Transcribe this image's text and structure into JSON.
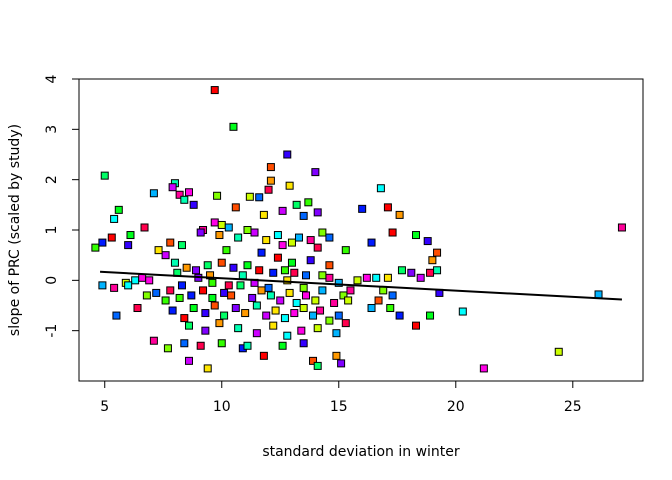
{
  "chart_data": {
    "type": "scatter",
    "title": "",
    "xlabel": "standard deviation in winter",
    "ylabel": "slope of PRC (scaled by study)",
    "xlim": [
      3.9,
      28.0
    ],
    "ylim": [
      -2.0,
      4.0
    ],
    "x_ticks": [
      5,
      10,
      15,
      20,
      25
    ],
    "y_ticks": [
      -1,
      0,
      1,
      2,
      3,
      4
    ],
    "grid": false,
    "legend": "none",
    "marker": "filled-square",
    "palette": [
      "#ff0000",
      "#ff4d00",
      "#ff9900",
      "#ffe600",
      "#ccff00",
      "#80ff00",
      "#33ff00",
      "#00ff1a",
      "#00ff66",
      "#00ffb3",
      "#00ffff",
      "#00b3ff",
      "#0066ff",
      "#001aff",
      "#3300ff",
      "#8000ff",
      "#cc00ff",
      "#ff00e6",
      "#ff0099",
      "#ff004d"
    ],
    "trend_line": {
      "x": [
        4.8,
        27.1
      ],
      "y": [
        0.17,
        -0.38
      ]
    },
    "points": [
      [
        9.7,
        3.78
      ],
      [
        10.5,
        3.05
      ],
      [
        12.8,
        2.5
      ],
      [
        12.1,
        2.25
      ],
      [
        5.0,
        2.08
      ],
      [
        14.0,
        2.15
      ],
      [
        12.1,
        1.98
      ],
      [
        8.0,
        1.93
      ],
      [
        7.9,
        1.85
      ],
      [
        12.9,
        1.88
      ],
      [
        16.8,
        1.83
      ],
      [
        8.6,
        1.75
      ],
      [
        11.2,
        1.66
      ],
      [
        7.1,
        1.73
      ],
      [
        8.2,
        1.7
      ],
      [
        9.8,
        1.68
      ],
      [
        11.6,
        1.65
      ],
      [
        12.0,
        1.8
      ],
      [
        13.7,
        1.55
      ],
      [
        16.0,
        1.42
      ],
      [
        17.1,
        1.45
      ],
      [
        5.6,
        1.4
      ],
      [
        8.8,
        1.5
      ],
      [
        10.6,
        1.45
      ],
      [
        13.2,
        1.5
      ],
      [
        14.1,
        1.35
      ],
      [
        17.6,
        1.3
      ],
      [
        8.4,
        1.6
      ],
      [
        12.6,
        1.38
      ],
      [
        11.8,
        1.3
      ],
      [
        5.4,
        1.22
      ],
      [
        9.7,
        1.15
      ],
      [
        10.0,
        1.1
      ],
      [
        10.3,
        1.05
      ],
      [
        9.2,
        1.0
      ],
      [
        11.1,
        1.0
      ],
      [
        13.5,
        1.28
      ],
      [
        6.7,
        1.05
      ],
      [
        4.6,
        0.65
      ],
      [
        4.9,
        0.75
      ],
      [
        5.3,
        0.85
      ],
      [
        6.1,
        0.9
      ],
      [
        6.0,
        0.7
      ],
      [
        7.8,
        0.75
      ],
      [
        8.3,
        0.7
      ],
      [
        9.1,
        0.95
      ],
      [
        9.9,
        0.9
      ],
      [
        10.7,
        0.85
      ],
      [
        11.4,
        0.95
      ],
      [
        11.9,
        0.8
      ],
      [
        12.4,
        0.9
      ],
      [
        12.6,
        0.7
      ],
      [
        13.0,
        0.75
      ],
      [
        13.3,
        0.85
      ],
      [
        13.8,
        0.8
      ],
      [
        14.3,
        0.95
      ],
      [
        14.6,
        0.85
      ],
      [
        14.1,
        0.65
      ],
      [
        15.3,
        0.6
      ],
      [
        16.4,
        0.75
      ],
      [
        17.3,
        0.95
      ],
      [
        18.3,
        0.9
      ],
      [
        18.8,
        0.78
      ],
      [
        19.2,
        0.55
      ],
      [
        17.7,
        0.2
      ],
      [
        18.1,
        0.15
      ],
      [
        19.0,
        0.4
      ],
      [
        19.2,
        0.2
      ],
      [
        18.5,
        0.05
      ],
      [
        17.1,
        0.05
      ],
      [
        16.6,
        0.05
      ],
      [
        16.2,
        0.05
      ],
      [
        15.8,
        0.0
      ],
      [
        15.0,
        -0.05
      ],
      [
        14.6,
        0.05
      ],
      [
        14.3,
        0.1
      ],
      [
        13.6,
        0.1
      ],
      [
        13.1,
        0.15
      ],
      [
        12.7,
        0.2
      ],
      [
        12.2,
        0.15
      ],
      [
        11.6,
        0.2
      ],
      [
        11.1,
        0.3
      ],
      [
        10.5,
        0.25
      ],
      [
        10.0,
        0.35
      ],
      [
        9.4,
        0.3
      ],
      [
        8.9,
        0.2
      ],
      [
        8.5,
        0.25
      ],
      [
        8.0,
        0.35
      ],
      [
        7.6,
        0.5
      ],
      [
        7.3,
        0.6
      ],
      [
        6.3,
        0.0
      ],
      [
        6.6,
        0.05
      ],
      [
        5.9,
        -0.05
      ],
      [
        4.9,
        -0.1
      ],
      [
        5.4,
        -0.15
      ],
      [
        6.8,
        -0.3
      ],
      [
        7.2,
        -0.25
      ],
      [
        7.8,
        -0.2
      ],
      [
        8.2,
        -0.35
      ],
      [
        8.7,
        -0.3
      ],
      [
        9.2,
        -0.2
      ],
      [
        9.6,
        -0.35
      ],
      [
        10.1,
        -0.25
      ],
      [
        10.4,
        -0.3
      ],
      [
        10.8,
        -0.1
      ],
      [
        11.3,
        -0.35
      ],
      [
        11.7,
        -0.2
      ],
      [
        12.1,
        -0.3
      ],
      [
        12.5,
        -0.4
      ],
      [
        12.9,
        -0.25
      ],
      [
        13.2,
        -0.45
      ],
      [
        13.6,
        -0.3
      ],
      [
        14.0,
        -0.4
      ],
      [
        14.3,
        -0.2
      ],
      [
        14.8,
        -0.45
      ],
      [
        15.2,
        -0.3
      ],
      [
        5.5,
        -0.7
      ],
      [
        6.4,
        -0.55
      ],
      [
        7.6,
        -0.4
      ],
      [
        7.9,
        -0.6
      ],
      [
        8.4,
        -0.75
      ],
      [
        8.8,
        -0.55
      ],
      [
        9.3,
        -0.65
      ],
      [
        9.7,
        -0.5
      ],
      [
        10.1,
        -0.7
      ],
      [
        10.6,
        -0.55
      ],
      [
        11.0,
        -0.65
      ],
      [
        11.5,
        -0.5
      ],
      [
        11.9,
        -0.7
      ],
      [
        12.3,
        -0.6
      ],
      [
        12.7,
        -0.75
      ],
      [
        13.1,
        -0.65
      ],
      [
        13.5,
        -0.55
      ],
      [
        13.9,
        -0.7
      ],
      [
        14.2,
        -0.6
      ],
      [
        14.6,
        -0.8
      ],
      [
        15.0,
        -0.7
      ],
      [
        15.3,
        -0.85
      ],
      [
        17.2,
        -0.55
      ],
      [
        17.6,
        -0.7
      ],
      [
        18.3,
        -0.9
      ],
      [
        18.9,
        -0.7
      ],
      [
        19.3,
        -0.25
      ],
      [
        16.7,
        -0.4
      ],
      [
        8.6,
        -0.9
      ],
      [
        9.3,
        -1.0
      ],
      [
        9.9,
        -0.85
      ],
      [
        10.7,
        -0.95
      ],
      [
        11.5,
        -1.05
      ],
      [
        12.2,
        -0.9
      ],
      [
        12.8,
        -1.1
      ],
      [
        13.4,
        -1.0
      ],
      [
        14.1,
        -0.95
      ],
      [
        14.9,
        -1.05
      ],
      [
        7.1,
        -1.2
      ],
      [
        7.7,
        -1.35
      ],
      [
        8.4,
        -1.25
      ],
      [
        9.1,
        -1.3
      ],
      [
        10.0,
        -1.25
      ],
      [
        10.9,
        -1.35
      ],
      [
        11.8,
        -1.5
      ],
      [
        12.6,
        -1.3
      ],
      [
        13.5,
        -1.25
      ],
      [
        13.9,
        -1.6
      ],
      [
        14.1,
        -1.7
      ],
      [
        15.1,
        -1.65
      ],
      [
        14.9,
        -1.5
      ],
      [
        11.1,
        -1.3
      ],
      [
        8.6,
        -1.6
      ],
      [
        9.4,
        -1.75
      ],
      [
        6.0,
        -0.1
      ],
      [
        6.9,
        0.0
      ],
      [
        15.4,
        -0.4
      ],
      [
        16.4,
        -0.55
      ],
      [
        15.5,
        -0.2
      ],
      [
        16.9,
        -0.2
      ],
      [
        17.3,
        -0.3
      ],
      [
        18.9,
        0.15
      ],
      [
        10.2,
        0.6
      ],
      [
        11.7,
        0.55
      ],
      [
        12.4,
        0.45
      ],
      [
        13.0,
        0.35
      ],
      [
        13.8,
        0.4
      ],
      [
        14.6,
        0.3
      ],
      [
        8.1,
        0.15
      ],
      [
        9.0,
        0.05
      ],
      [
        9.5,
        0.1
      ],
      [
        10.9,
        0.1
      ],
      [
        11.4,
        -0.05
      ],
      [
        12.8,
        0.0
      ],
      [
        20.3,
        -0.62
      ],
      [
        21.2,
        -1.75
      ],
      [
        24.4,
        -1.42
      ],
      [
        26.1,
        -0.28
      ],
      [
        27.1,
        1.05
      ],
      [
        13.5,
        -0.15
      ],
      [
        12.0,
        -0.15
      ],
      [
        10.3,
        -0.1
      ],
      [
        9.6,
        -0.05
      ],
      [
        8.3,
        -0.1
      ]
    ]
  }
}
